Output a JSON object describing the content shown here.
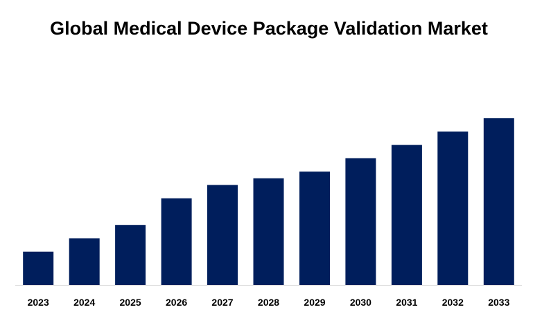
{
  "chart_data": {
    "type": "bar",
    "title": "Global Medical Device Package Validation Market",
    "categories": [
      "2023",
      "2024",
      "2025",
      "2026",
      "2027",
      "2028",
      "2029",
      "2030",
      "2031",
      "2032",
      "2033"
    ],
    "values": [
      1.0,
      1.4,
      1.8,
      2.6,
      3.0,
      3.2,
      3.4,
      3.8,
      4.2,
      4.6,
      5.0
    ],
    "xlabel": "",
    "ylabel": "",
    "ylim": [
      0,
      5.0
    ],
    "grid": false,
    "legend": "none",
    "bar_color": "#001E5C",
    "axis_color": "#D9D9D9"
  }
}
